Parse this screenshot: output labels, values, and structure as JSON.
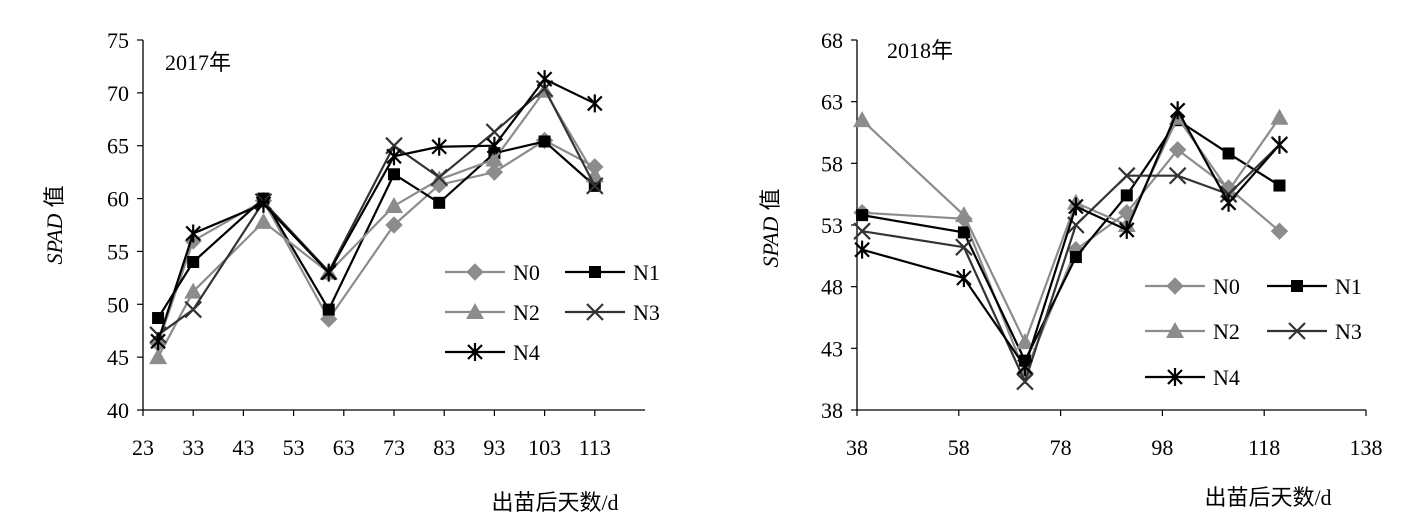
{
  "chart_data": [
    {
      "type": "line",
      "panel_label": "2017年",
      "xlabel": "出苗后天数/d",
      "ylabel_italic": "SPAD",
      "ylabel_rest": "值",
      "xlim": [
        23,
        123
      ],
      "ylim": [
        40,
        75
      ],
      "xticks": [
        23,
        33,
        43,
        53,
        63,
        73,
        83,
        93,
        103,
        113
      ],
      "yticks": [
        40,
        45,
        50,
        55,
        60,
        65,
        70,
        75
      ],
      "series": [
        {
          "name": "N0",
          "color": "#8c8c8c",
          "marker": "diamond",
          "x": [
            26,
            33,
            47,
            60,
            73,
            82,
            93,
            103,
            113
          ],
          "y": [
            46.3,
            56.0,
            59.8,
            48.6,
            57.5,
            61.3,
            62.5,
            65.5,
            63.0
          ]
        },
        {
          "name": "N1",
          "color": "#000000",
          "marker": "square",
          "x": [
            26,
            33,
            47,
            60,
            73,
            82,
            93,
            103,
            113
          ],
          "y": [
            48.7,
            54.0,
            60.0,
            49.5,
            62.3,
            59.6,
            64.3,
            65.4,
            61.2
          ]
        },
        {
          "name": "N2",
          "color": "#8c8c8c",
          "marker": "triangle",
          "x": [
            26,
            33,
            47,
            60,
            73,
            82,
            93,
            103,
            113
          ],
          "y": [
            45.0,
            51.2,
            57.8,
            53.0,
            59.3,
            61.8,
            63.7,
            70.2,
            62.2
          ]
        },
        {
          "name": "N3",
          "color": "#333333",
          "marker": "x",
          "x": [
            26,
            33,
            47,
            60,
            73,
            82,
            93,
            103,
            113
          ],
          "y": [
            47.1,
            49.5,
            59.7,
            53.1,
            65.0,
            62.0,
            66.3,
            70.4,
            61.2
          ]
        },
        {
          "name": "N4",
          "color": "#000000",
          "marker": "star",
          "x": [
            26,
            33,
            47,
            60,
            73,
            82,
            93,
            103,
            113
          ],
          "y": [
            46.5,
            56.7,
            59.5,
            53.0,
            64.0,
            64.9,
            65.0,
            71.3,
            69.0
          ]
        }
      ]
    },
    {
      "type": "line",
      "panel_label": "2018年",
      "xlabel": "出苗后天数/d",
      "ylabel_italic": "SPAD",
      "ylabel_rest": "值",
      "xlim": [
        38,
        138
      ],
      "ylim": [
        38,
        68
      ],
      "xticks": [
        38,
        58,
        78,
        98,
        118,
        138
      ],
      "yticks": [
        38,
        43,
        48,
        53,
        58,
        63,
        68
      ],
      "series": [
        {
          "name": "N0",
          "color": "#8c8c8c",
          "marker": "diamond",
          "x": [
            39,
            59,
            71,
            81,
            91,
            101,
            111,
            121
          ],
          "y": [
            54.0,
            53.5,
            41.0,
            51.0,
            54.0,
            59.1,
            56.0,
            52.5
          ]
        },
        {
          "name": "N1",
          "color": "#000000",
          "marker": "square",
          "x": [
            39,
            59,
            71,
            81,
            91,
            101,
            111,
            121
          ],
          "y": [
            53.8,
            52.4,
            42.0,
            50.4,
            55.4,
            61.5,
            58.8,
            56.2
          ]
        },
        {
          "name": "N2",
          "color": "#8c8c8c",
          "marker": "triangle",
          "x": [
            39,
            59,
            71,
            81,
            91,
            101,
            111,
            121
          ],
          "y": [
            61.5,
            53.8,
            43.5,
            54.8,
            53.0,
            61.7,
            55.8,
            61.7
          ]
        },
        {
          "name": "N3",
          "color": "#333333",
          "marker": "x",
          "x": [
            39,
            59,
            71,
            81,
            91,
            101,
            111,
            121
          ],
          "y": [
            52.5,
            51.2,
            40.3,
            53.0,
            57.0,
            57.0,
            55.5,
            59.5
          ]
        },
        {
          "name": "N4",
          "color": "#000000",
          "marker": "star",
          "x": [
            39,
            59,
            71,
            81,
            91,
            101,
            111,
            121
          ],
          "y": [
            51.0,
            48.7,
            41.5,
            54.5,
            52.6,
            62.3,
            54.8,
            59.5
          ]
        }
      ]
    }
  ]
}
